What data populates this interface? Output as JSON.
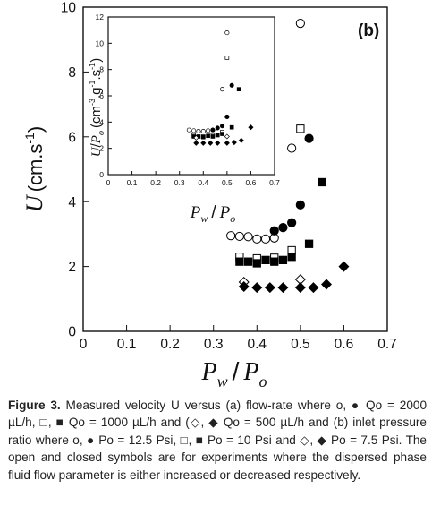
{
  "chart_data": [
    {
      "type": "scatter",
      "panel_label": "(b)",
      "xlabel": "P_w / P_o",
      "ylabel": "U (cm.s-1)",
      "xlim": [
        0,
        0.7
      ],
      "ylim": [
        0,
        10
      ],
      "x_ticks": [
        "0",
        "0.1",
        "0.2",
        "0.3",
        "0.4",
        "0.5",
        "0.6",
        "0.7"
      ],
      "y_ticks": [
        "0",
        "2",
        "4",
        "6",
        "8",
        "10"
      ],
      "series": [
        {
          "marker": "open-circle",
          "x": [
            0.34,
            0.36,
            0.38,
            0.4,
            0.42,
            0.44,
            0.48,
            0.5
          ],
          "y": [
            2.95,
            2.93,
            2.92,
            2.85,
            2.85,
            2.88,
            5.65,
            9.5
          ]
        },
        {
          "marker": "filled-circle",
          "x": [
            0.44,
            0.46,
            0.48,
            0.5,
            0.52
          ],
          "y": [
            3.1,
            3.2,
            3.35,
            3.9,
            5.95
          ]
        },
        {
          "marker": "open-square",
          "x": [
            0.36,
            0.4,
            0.44,
            0.48,
            0.5
          ],
          "y": [
            2.3,
            2.25,
            2.27,
            2.5,
            6.25
          ]
        },
        {
          "marker": "filled-square",
          "x": [
            0.36,
            0.38,
            0.4,
            0.42,
            0.44,
            0.46,
            0.48,
            0.52,
            0.55
          ],
          "y": [
            2.15,
            2.15,
            2.1,
            2.2,
            2.15,
            2.2,
            2.3,
            2.7,
            4.6
          ]
        },
        {
          "marker": "open-diamond",
          "x": [
            0.37,
            0.5
          ],
          "y": [
            1.52,
            1.6
          ]
        },
        {
          "marker": "filled-diamond",
          "x": [
            0.37,
            0.4,
            0.43,
            0.46,
            0.5,
            0.53,
            0.56,
            0.6
          ],
          "y": [
            1.38,
            1.35,
            1.35,
            1.35,
            1.35,
            1.35,
            1.45,
            2.0
          ]
        }
      ]
    },
    {
      "type": "scatter",
      "role": "inset",
      "xlabel": "P_w / P_o",
      "ylabel": "U/P_o (cm-3.g-1.s-1)",
      "xlim": [
        0,
        0.7
      ],
      "ylim": [
        0,
        12
      ],
      "x_ticks": [
        "0",
        "0.1",
        "0.2",
        "0.3",
        "0.4",
        "0.5",
        "0.6",
        "0.7"
      ],
      "y_ticks": [
        "0",
        "2",
        "4",
        "6",
        "8",
        "10",
        "12"
      ],
      "series": [
        {
          "marker": "open-circle",
          "x": [
            0.34,
            0.36,
            0.38,
            0.4,
            0.42,
            0.44,
            0.48,
            0.5
          ],
          "y": [
            3.4,
            3.35,
            3.3,
            3.3,
            3.35,
            3.4,
            6.5,
            10.8
          ]
        },
        {
          "marker": "filled-circle",
          "x": [
            0.44,
            0.46,
            0.48,
            0.5,
            0.52
          ],
          "y": [
            3.4,
            3.55,
            3.7,
            4.4,
            6.8
          ]
        },
        {
          "marker": "open-square",
          "x": [
            0.36,
            0.4,
            0.44,
            0.48,
            0.5
          ],
          "y": [
            3.0,
            2.9,
            3.0,
            3.25,
            8.9
          ]
        },
        {
          "marker": "filled-square",
          "x": [
            0.36,
            0.38,
            0.4,
            0.42,
            0.44,
            0.46,
            0.48,
            0.52,
            0.55
          ],
          "y": [
            2.9,
            2.9,
            2.85,
            2.95,
            2.9,
            3.0,
            3.1,
            3.6,
            6.5
          ]
        },
        {
          "marker": "open-diamond",
          "x": [
            0.37,
            0.5
          ],
          "y": [
            2.8,
            2.9
          ]
        },
        {
          "marker": "filled-diamond",
          "x": [
            0.37,
            0.4,
            0.43,
            0.46,
            0.5,
            0.53,
            0.56,
            0.6
          ],
          "y": [
            2.4,
            2.4,
            2.4,
            2.4,
            2.4,
            2.45,
            2.6,
            3.6
          ]
        }
      ]
    }
  ],
  "caption": {
    "figure_label": "Figure 3.",
    "text": " Measured velocity U versus (a) flow-rate where o, ● Qo = 2000 µL/h, □, ■ Qo = 1000 µL/h and (◇, ◆ Qo = 500 µL/h and (b) inlet pressure ratio where o, ● Po = 12.5 Psi, □, ■ Po = 10 Psi and ◇, ◆ Po = 7.5 Psi. The open and closed symbols are for experiments where the dispersed phase fluid flow parameter is either increased or decreased respectively."
  }
}
